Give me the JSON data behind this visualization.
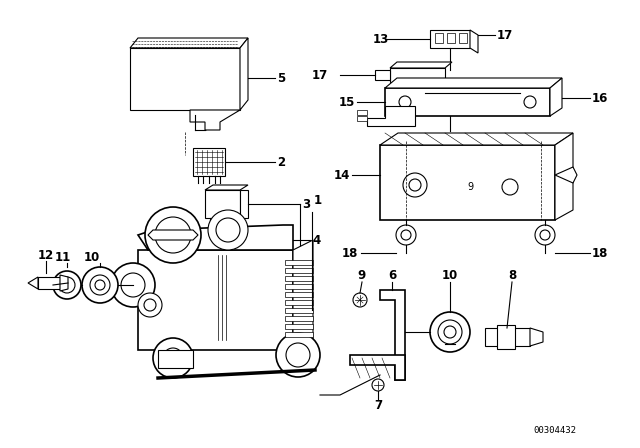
{
  "background_color": "#ffffff",
  "diagram_code": "00304432",
  "line_color": "#000000",
  "label_fontsize": 8.5,
  "diagram_fontsize": 6.5,
  "lw": 0.8
}
